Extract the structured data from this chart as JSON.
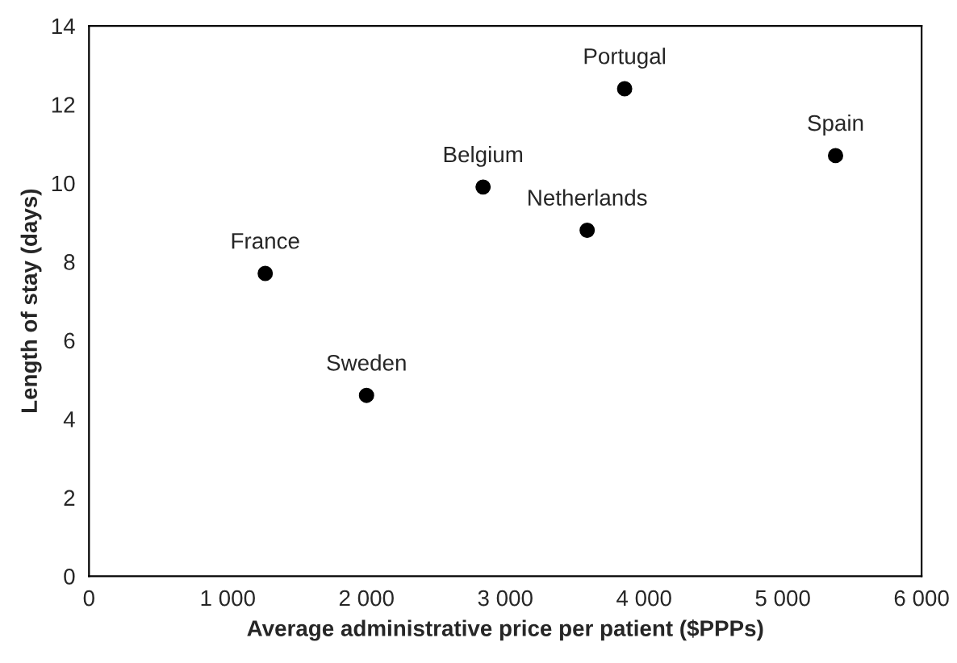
{
  "chart_data": {
    "type": "scatter",
    "xlabel": "Average administrative price per patient ($PPPs)",
    "ylabel": "Length of stay (days)",
    "x": [
      1270,
      2000,
      2840,
      3590,
      3860,
      5380
    ],
    "series": [
      {
        "color": "#000000",
        "values": [
          7.7,
          4.6,
          9.9,
          8.8,
          12.4,
          10.7
        ]
      }
    ],
    "value_labels": [
      "France",
      "Sweden",
      "Belgium",
      "Netherlands",
      "Portugal",
      "Spain"
    ],
    "xlim": [
      0,
      6000
    ],
    "ylim": [
      0,
      14
    ],
    "xticks": [
      0,
      {
        "value": 1000,
        "label": "1 000"
      },
      {
        "value": 2000,
        "label": "2 000"
      },
      {
        "value": 3000,
        "label": "3 000"
      },
      {
        "value": 4000,
        "label": "4 000"
      },
      {
        "value": 5000,
        "label": "5 000"
      },
      {
        "value": 6000,
        "label": "6 000"
      }
    ],
    "yticks": [
      0,
      2,
      4,
      6,
      8,
      10,
      12,
      14
    ],
    "marker": "circle",
    "grid": false
  }
}
